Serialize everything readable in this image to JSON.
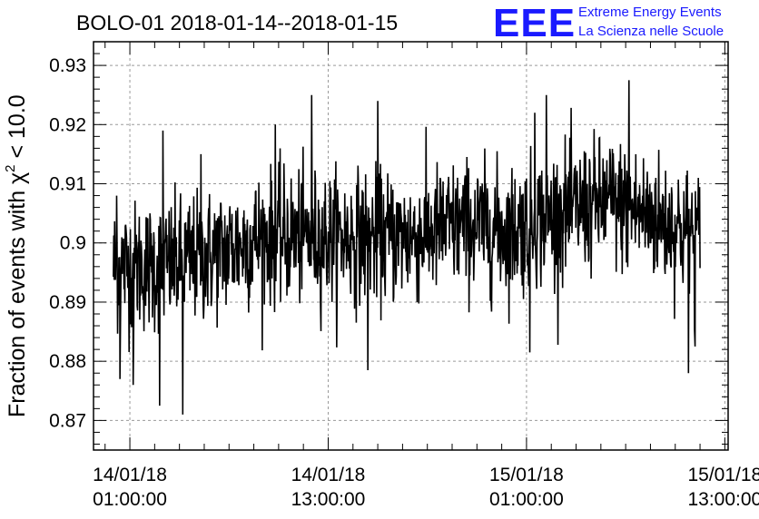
{
  "chart_data": {
    "type": "line",
    "title": "BOLO-01 2018-01-14--2018-01-15",
    "ylabel_prefix": "Fraction of events with ",
    "ylabel_symbol": "χ",
    "ylabel_sup": "2",
    "ylabel_suffix": " < 10.0",
    "xlabel": "",
    "ylim": [
      0.865,
      0.934
    ],
    "xlim_hours": [
      -1.2,
      37.2
    ],
    "y_ticks": [
      "0.87",
      "0.88",
      "0.89",
      "0.9",
      "0.91",
      "0.92",
      "0.93"
    ],
    "y_tick_values": [
      0.87,
      0.88,
      0.89,
      0.9,
      0.91,
      0.92,
      0.93
    ],
    "x_ticks": [
      {
        "date": "14/01/18",
        "time": "01:00:00"
      },
      {
        "date": "14/01/18",
        "time": "13:00:00"
      },
      {
        "date": "15/01/18",
        "time": "01:00:00"
      },
      {
        "date": "15/01/18",
        "time": "13:00:00"
      }
    ],
    "x_tick_hours": [
      1,
      13,
      25,
      37
    ],
    "grid": true,
    "series": [
      {
        "color": "#000000",
        "x_start": "2018-01-14 00:00",
        "x_end": "2018-01-15 11:30",
        "points": 1380,
        "trend_hours": [
          0,
          3,
          6,
          9,
          12,
          15,
          18,
          21,
          24,
          27,
          30,
          33,
          35.5
        ],
        "trend_values": [
          0.896,
          0.896,
          0.898,
          0.901,
          0.901,
          0.901,
          0.901,
          0.903,
          0.902,
          0.905,
          0.907,
          0.904,
          0.901
        ],
        "noise_sd": 0.0055,
        "notable_points": [
          {
            "hour": 0.2,
            "value": 0.908
          },
          {
            "hour": 0.4,
            "value": 0.877
          },
          {
            "hour": 1.2,
            "value": 0.876
          },
          {
            "hour": 2.8,
            "value": 0.8725
          },
          {
            "hour": 4.2,
            "value": 0.871
          },
          {
            "hour": 3.0,
            "value": 0.919
          },
          {
            "hour": 5.3,
            "value": 0.915
          },
          {
            "hour": 9.8,
            "value": 0.92
          },
          {
            "hour": 12.0,
            "value": 0.925
          },
          {
            "hour": 15.4,
            "value": 0.8785
          },
          {
            "hour": 16.0,
            "value": 0.924
          },
          {
            "hour": 25.2,
            "value": 0.8815
          },
          {
            "hour": 25.5,
            "value": 0.922
          },
          {
            "hour": 26.2,
            "value": 0.925
          },
          {
            "hour": 31.2,
            "value": 0.9275
          },
          {
            "hour": 34.8,
            "value": 0.878
          },
          {
            "hour": 35.2,
            "value": 0.8825
          }
        ]
      }
    ]
  },
  "logo": {
    "mark": "EEE",
    "line1": "Extreme Energy Events",
    "line2": "La Scienza nelle Scuole"
  }
}
